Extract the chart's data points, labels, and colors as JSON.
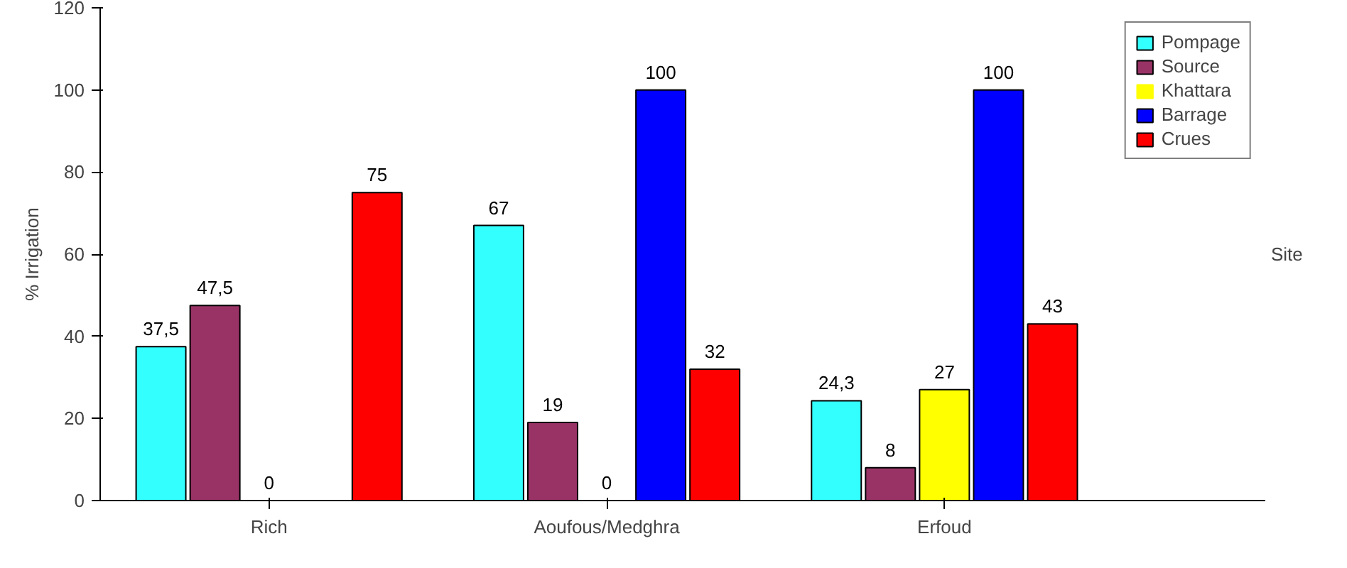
{
  "chart_data": {
    "type": "bar",
    "xlabel": "Site",
    "ylabel": "% Irrigation",
    "categories": [
      "Rich",
      "Aoufous/Medghra",
      "Erfoud"
    ],
    "series": [
      {
        "name": "Pompage",
        "color": "#33ffff",
        "values": [
          37.5,
          67,
          24.3
        ],
        "value_labels": [
          "37,5",
          "67",
          "24,3"
        ]
      },
      {
        "name": "Source",
        "color": "#993366",
        "values": [
          47.5,
          19,
          8
        ],
        "value_labels": [
          "47,5",
          "19",
          "8"
        ]
      },
      {
        "name": "Khattara",
        "color": "#ffff00",
        "values": [
          0,
          0,
          27
        ],
        "value_labels": [
          "0",
          "0",
          "27"
        ]
      },
      {
        "name": "Barrage",
        "color": "#0000ff",
        "values": [
          null,
          100,
          100
        ],
        "value_labels": [
          null,
          "100",
          "100"
        ]
      },
      {
        "name": "Crues",
        "color": "#ff0000",
        "values": [
          75,
          32,
          43
        ],
        "value_labels": [
          "75",
          "32",
          "43"
        ]
      }
    ],
    "ylim": [
      0,
      120
    ],
    "yticks": [
      0,
      20,
      40,
      60,
      80,
      100,
      120
    ],
    "grid": false,
    "legend": "top right"
  }
}
